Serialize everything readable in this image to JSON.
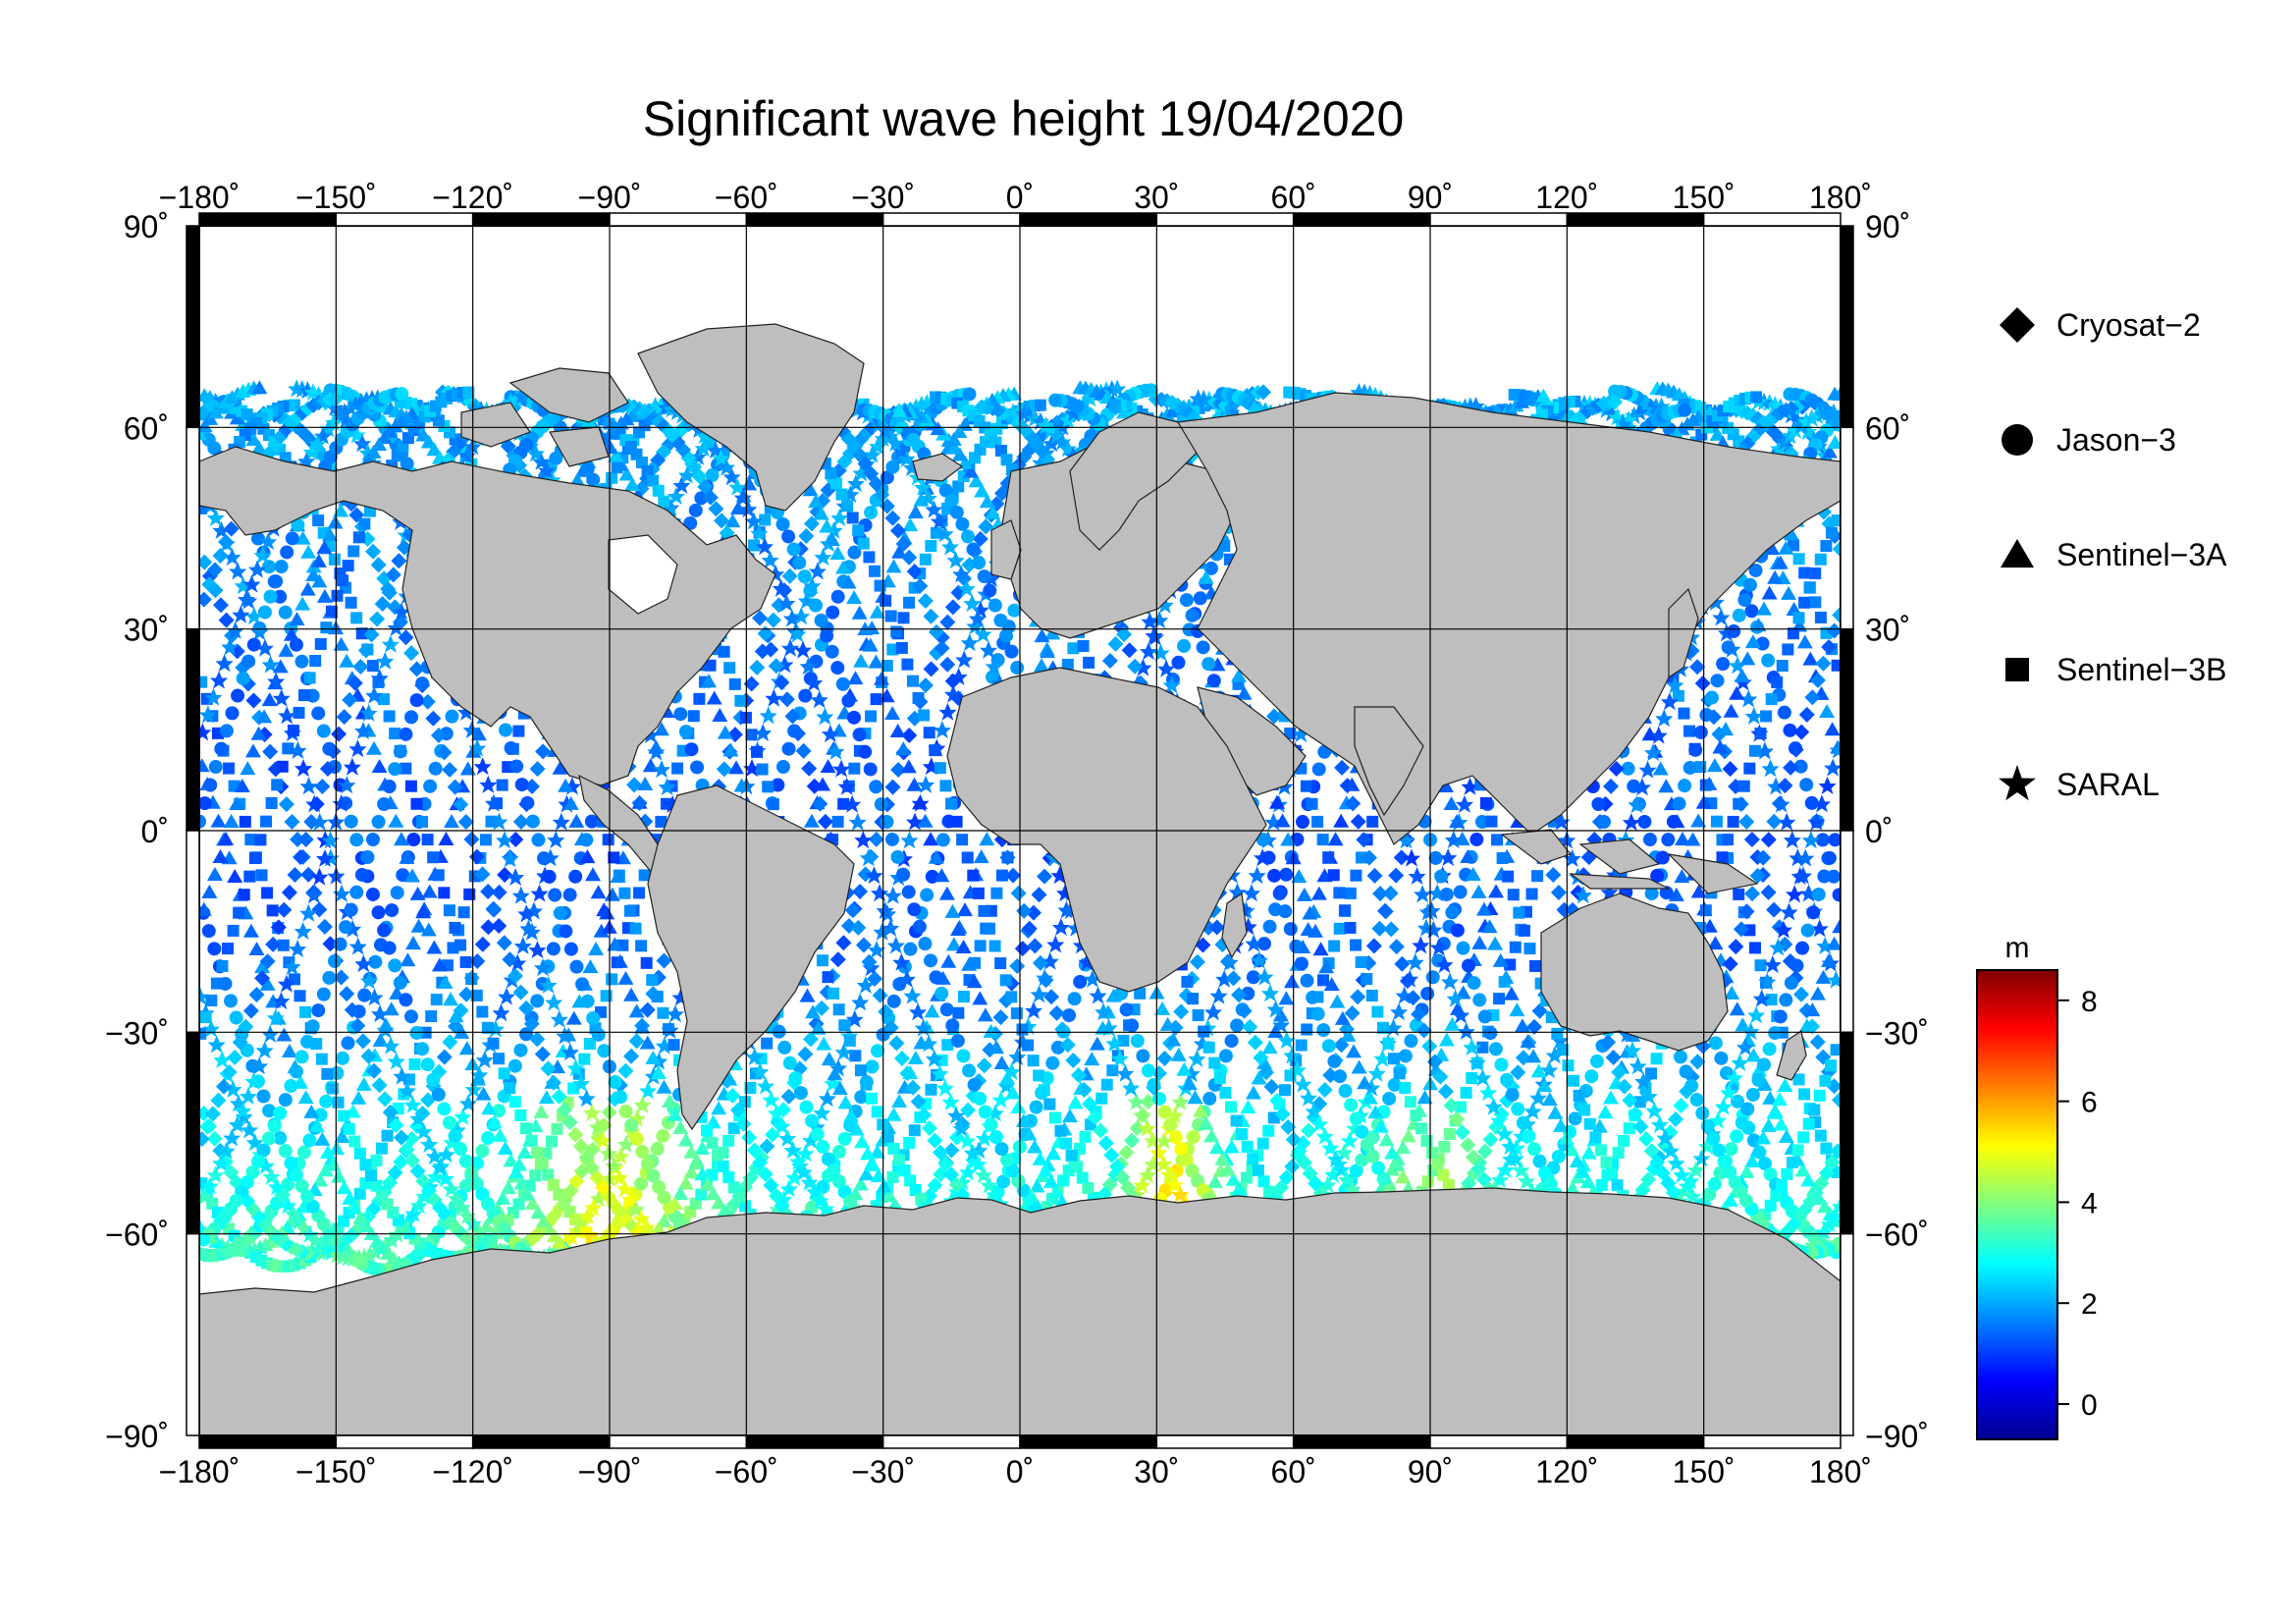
{
  "title": "Significant wave height 19/04/2020",
  "map": {
    "projection": "equirectangular",
    "lon_range": [
      -180,
      180
    ],
    "lat_range": [
      -90,
      90
    ],
    "grid_step_lon": 30,
    "grid_step_lat": 30,
    "land_color": "#bebebe",
    "ocean_color": "#ffffff",
    "lon_tick_labels": [
      "−180˚",
      "−150˚",
      "−120˚",
      "−90˚",
      "−60˚",
      "−30˚",
      "0˚",
      "30˚",
      "60˚",
      "90˚",
      "120˚",
      "150˚",
      "180˚"
    ],
    "lat_tick_labels": [
      "90˚",
      "60˚",
      "30˚",
      "0˚",
      "−30˚",
      "−60˚",
      "−90˚"
    ],
    "lat_tick_labels_left": [
      "90˚",
      "60˚",
      "30˚",
      "0˚",
      "−30˚",
      "−60˚",
      "−90˚"
    ]
  },
  "legend": {
    "items": [
      {
        "label": "Cryosat−2",
        "marker": "diamond-icon"
      },
      {
        "label": "Jason−3",
        "marker": "circle-icon"
      },
      {
        "label": "Sentinel−3A",
        "marker": "triangle-icon"
      },
      {
        "label": "Sentinel−3B",
        "marker": "square-icon"
      },
      {
        "label": "SARAL",
        "marker": "star-icon"
      }
    ]
  },
  "colorbar": {
    "unit": "m",
    "range": [
      -0.7,
      8.6
    ],
    "ticks": [
      0,
      2,
      4,
      6,
      8
    ],
    "tick_labels": [
      "0",
      "2",
      "4",
      "6",
      "8"
    ],
    "colormap": "jet"
  }
}
